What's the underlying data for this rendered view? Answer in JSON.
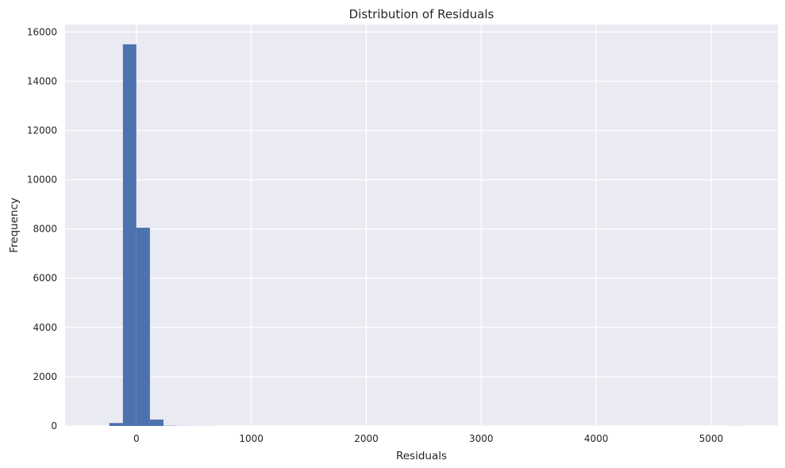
{
  "chart_data": {
    "type": "bar",
    "title": "Distribution of Residuals",
    "xlabel": "Residuals",
    "ylabel": "Frequency",
    "xlim": [
      -620,
      5580
    ],
    "ylim": [
      0,
      16300
    ],
    "x_ticks": [
      0,
      1000,
      2000,
      3000,
      4000,
      5000
    ],
    "y_ticks": [
      0,
      2000,
      4000,
      6000,
      8000,
      10000,
      12000,
      14000,
      16000
    ],
    "grid": true,
    "legend": "none",
    "colors": {
      "bar": "#4c72b0",
      "plot_bg": "#eaeaf2",
      "grid": "#ffffff"
    },
    "bins": [
      {
        "x0": -235,
        "x1": -117,
        "count": 120
      },
      {
        "x0": -117,
        "x1": 0,
        "count": 15500
      },
      {
        "x0": 0,
        "x1": 118,
        "count": 8050
      },
      {
        "x0": 118,
        "x1": 236,
        "count": 260
      },
      {
        "x0": 236,
        "x1": 354,
        "count": 10
      },
      {
        "x0": 354,
        "x1": 472,
        "count": 4
      },
      {
        "x0": 472,
        "x1": 590,
        "count": 2
      },
      {
        "x0": 590,
        "x1": 708,
        "count": 1
      },
      {
        "x0": 5148,
        "x1": 5266,
        "count": 1
      }
    ]
  }
}
